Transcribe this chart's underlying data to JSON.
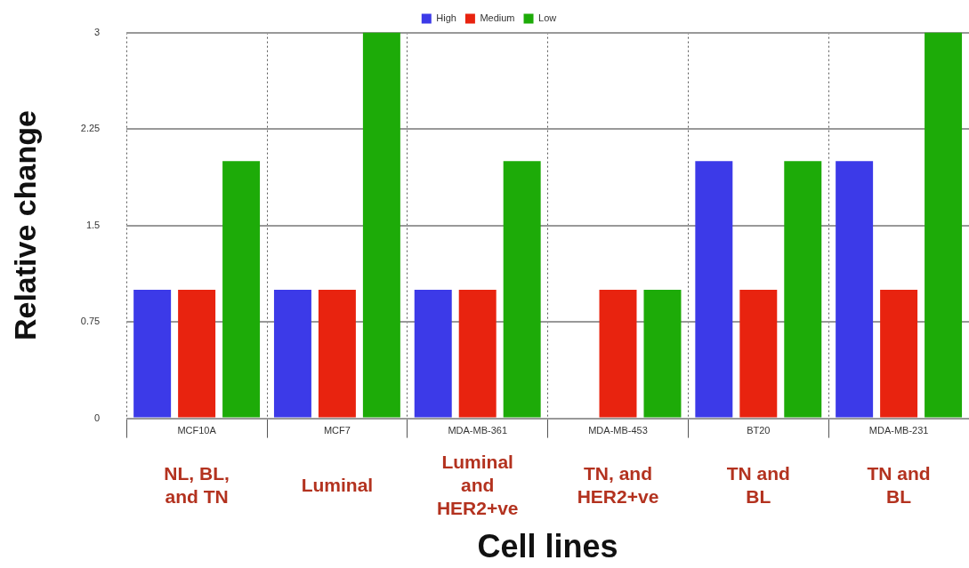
{
  "chart_data": {
    "type": "bar",
    "xlabel": "Cell lines",
    "ylabel": "Relative change",
    "categories": [
      "MCF10A",
      "MCF7",
      "MDA-MB-361",
      "MDA-MB-453",
      "BT20",
      "MDA-MB-231"
    ],
    "series": [
      {
        "name": "High",
        "color": "#3c3ae8",
        "values": [
          1,
          1,
          1,
          0,
          2,
          2
        ]
      },
      {
        "name": "Medium",
        "color": "#e8230f",
        "values": [
          1,
          1,
          1,
          1,
          1,
          1
        ]
      },
      {
        "name": "Low",
        "color": "#1dab08",
        "values": [
          2,
          3,
          2,
          1,
          2,
          3
        ]
      }
    ],
    "ylim": [
      0,
      3
    ],
    "yticks": [
      0,
      0.75,
      1.5,
      2.25,
      3
    ],
    "grid": true,
    "legend": "top",
    "annotations": [
      "NL, BL, and TN",
      "Luminal",
      "Luminal and HER2+ve",
      "TN, and HER2+ve",
      "TN and BL",
      "TN and BL"
    ]
  }
}
